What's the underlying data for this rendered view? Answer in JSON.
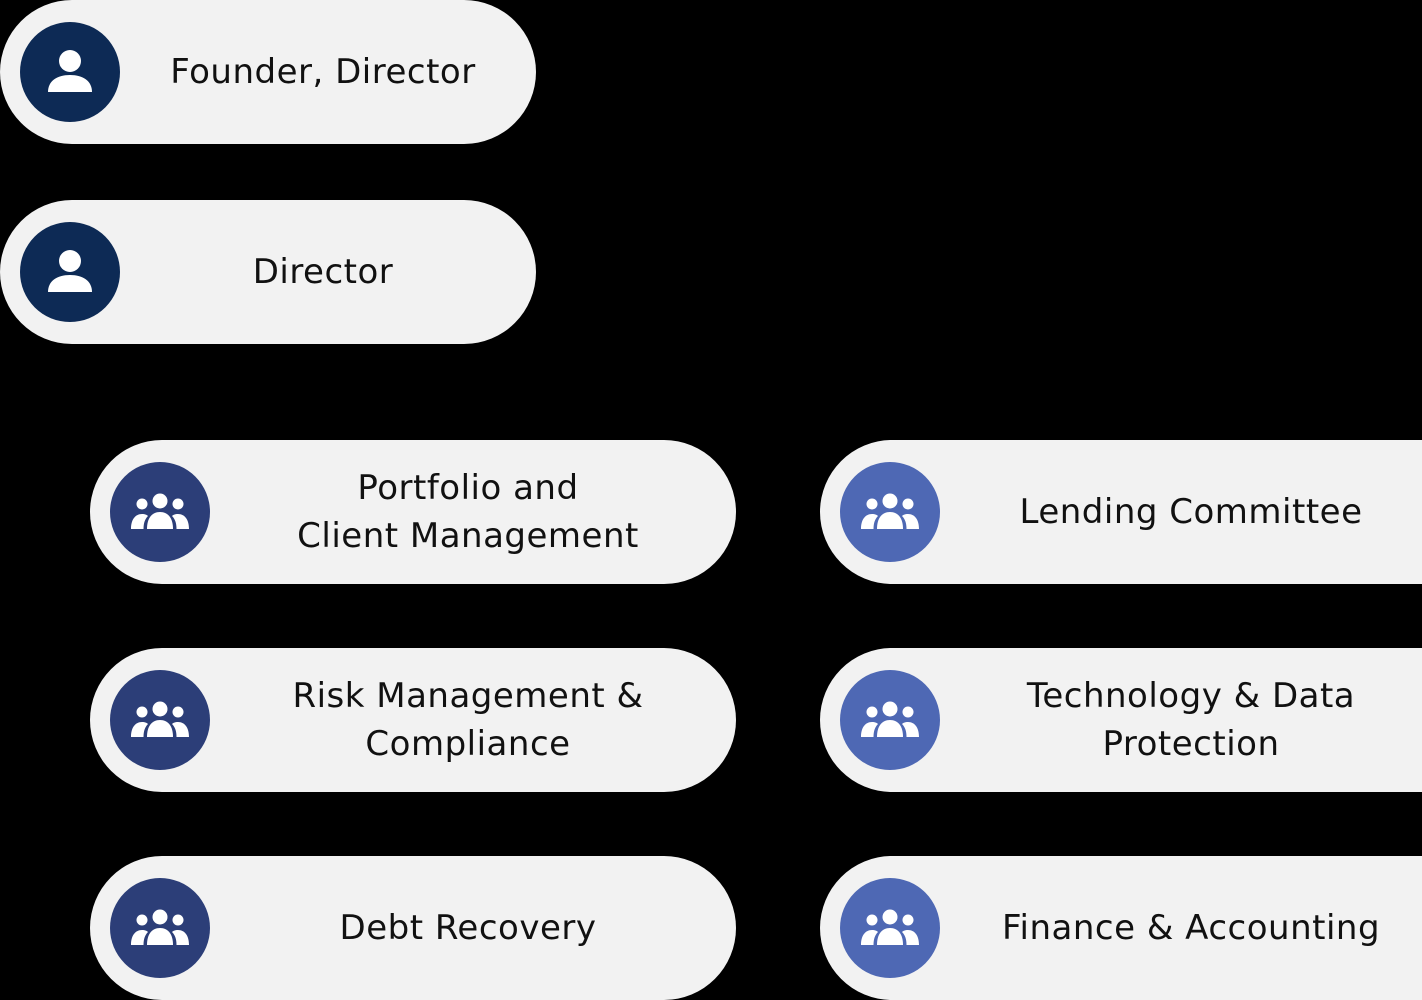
{
  "colors": {
    "background": "#000000",
    "pill": "#f2f2f2",
    "leadership_icon": "#0d2a55",
    "left_team_icon": "#2c3e78",
    "right_team_icon": "#4e68b4"
  },
  "leadership": [
    {
      "label": "Founder, Director",
      "icon": "person-icon"
    },
    {
      "label": "Director",
      "icon": "person-icon"
    }
  ],
  "teams_left": [
    {
      "line1": "Portfolio and",
      "line2": "Client Management",
      "icon": "group-icon"
    },
    {
      "line1": "Risk Management &",
      "line2": "Compliance",
      "icon": "group-icon"
    },
    {
      "line1": "Debt Recovery",
      "line2": "",
      "icon": "group-icon"
    }
  ],
  "teams_right": [
    {
      "line1": "Lending Committee",
      "line2": "",
      "icon": "group-icon"
    },
    {
      "line1": "Technology & Data",
      "line2": "Protection",
      "icon": "group-icon"
    },
    {
      "line1": "Finance & Accounting",
      "line2": "",
      "icon": "group-icon"
    }
  ]
}
